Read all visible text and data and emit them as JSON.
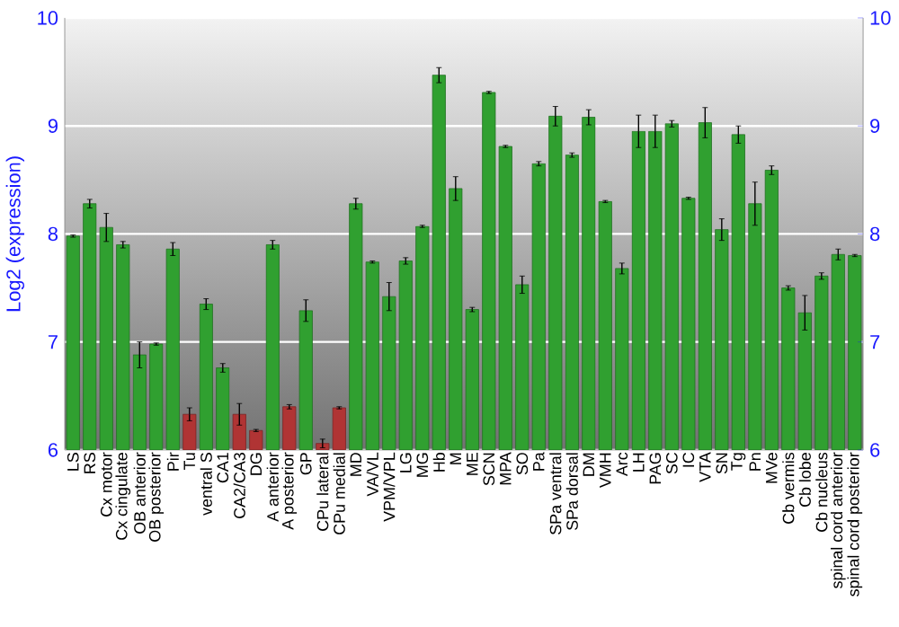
{
  "chart_data": {
    "type": "bar",
    "ylabel": "Log2 (expression)",
    "categories": [
      "LS",
      "RS",
      "Cx motor",
      "Cx cingulate",
      "OB anterior",
      "OB posterior",
      "Pir",
      "Tu",
      "ventral S",
      "CA1",
      "CA2/CA3",
      "DG",
      "A anterior",
      "A posterior",
      "GP",
      "CPu lateral",
      "CPu medial",
      "MD",
      "VA/VL",
      "VPM/VPL",
      "LG",
      "MG",
      "Hb",
      "M",
      "ME",
      "SCN",
      "MPA",
      "SO",
      "Pa",
      "SPa ventral",
      "SPa dorsal",
      "DM",
      "VMH",
      "Arc",
      "LH",
      "PAG",
      "SC",
      "IC",
      "VTA",
      "SN",
      "Tg",
      "Pn",
      "MVe",
      "Cb vermis",
      "Cb lobe",
      "Cb nucleus",
      "spinal cord anterior",
      "spinal cord posterior"
    ],
    "values": [
      7.98,
      8.28,
      8.06,
      7.9,
      6.88,
      6.98,
      7.86,
      6.33,
      7.35,
      6.76,
      6.33,
      6.18,
      7.9,
      6.4,
      7.29,
      6.06,
      6.39,
      8.28,
      7.74,
      7.42,
      7.75,
      8.07,
      9.47,
      8.42,
      7.3,
      9.31,
      8.81,
      7.53,
      8.65,
      9.09,
      8.73,
      9.08,
      8.3,
      7.68,
      8.95,
      8.95,
      9.02,
      8.33,
      9.03,
      8.04,
      8.92,
      8.28,
      8.59,
      7.5,
      7.27,
      7.61,
      7.81,
      7.8
    ],
    "errors": [
      0.01,
      0.04,
      0.13,
      0.03,
      0.12,
      0.01,
      0.06,
      0.06,
      0.05,
      0.04,
      0.1,
      0.01,
      0.04,
      0.02,
      0.1,
      0.04,
      0.01,
      0.05,
      0.01,
      0.13,
      0.03,
      0.01,
      0.07,
      0.11,
      0.02,
      0.01,
      0.01,
      0.08,
      0.02,
      0.09,
      0.02,
      0.07,
      0.01,
      0.05,
      0.15,
      0.15,
      0.03,
      0.01,
      0.14,
      0.1,
      0.08,
      0.2,
      0.04,
      0.02,
      0.16,
      0.03,
      0.05,
      0.01
    ],
    "colors": [
      "#30a030",
      "#30a030",
      "#30a030",
      "#30a030",
      "#30a030",
      "#30a030",
      "#30a030",
      "#b03434",
      "#30a030",
      "#30a030",
      "#b03434",
      "#b03434",
      "#30a030",
      "#b03434",
      "#30a030",
      "#b03434",
      "#b03434",
      "#30a030",
      "#30a030",
      "#30a030",
      "#30a030",
      "#30a030",
      "#30a030",
      "#30a030",
      "#30a030",
      "#30a030",
      "#30a030",
      "#30a030",
      "#30a030",
      "#30a030",
      "#30a030",
      "#30a030",
      "#30a030",
      "#30a030",
      "#30a030",
      "#30a030",
      "#30a030",
      "#30a030",
      "#30a030",
      "#30a030",
      "#30a030",
      "#30a030",
      "#30a030",
      "#30a030",
      "#30a030",
      "#30a030",
      "#30a030",
      "#30a030"
    ],
    "ylim": [
      6,
      10
    ],
    "yticks": [
      6,
      7,
      8,
      9,
      10
    ],
    "y2lim": [
      6,
      10
    ],
    "y2ticks": [
      6,
      7,
      8,
      9,
      10
    ],
    "grid": "y"
  }
}
